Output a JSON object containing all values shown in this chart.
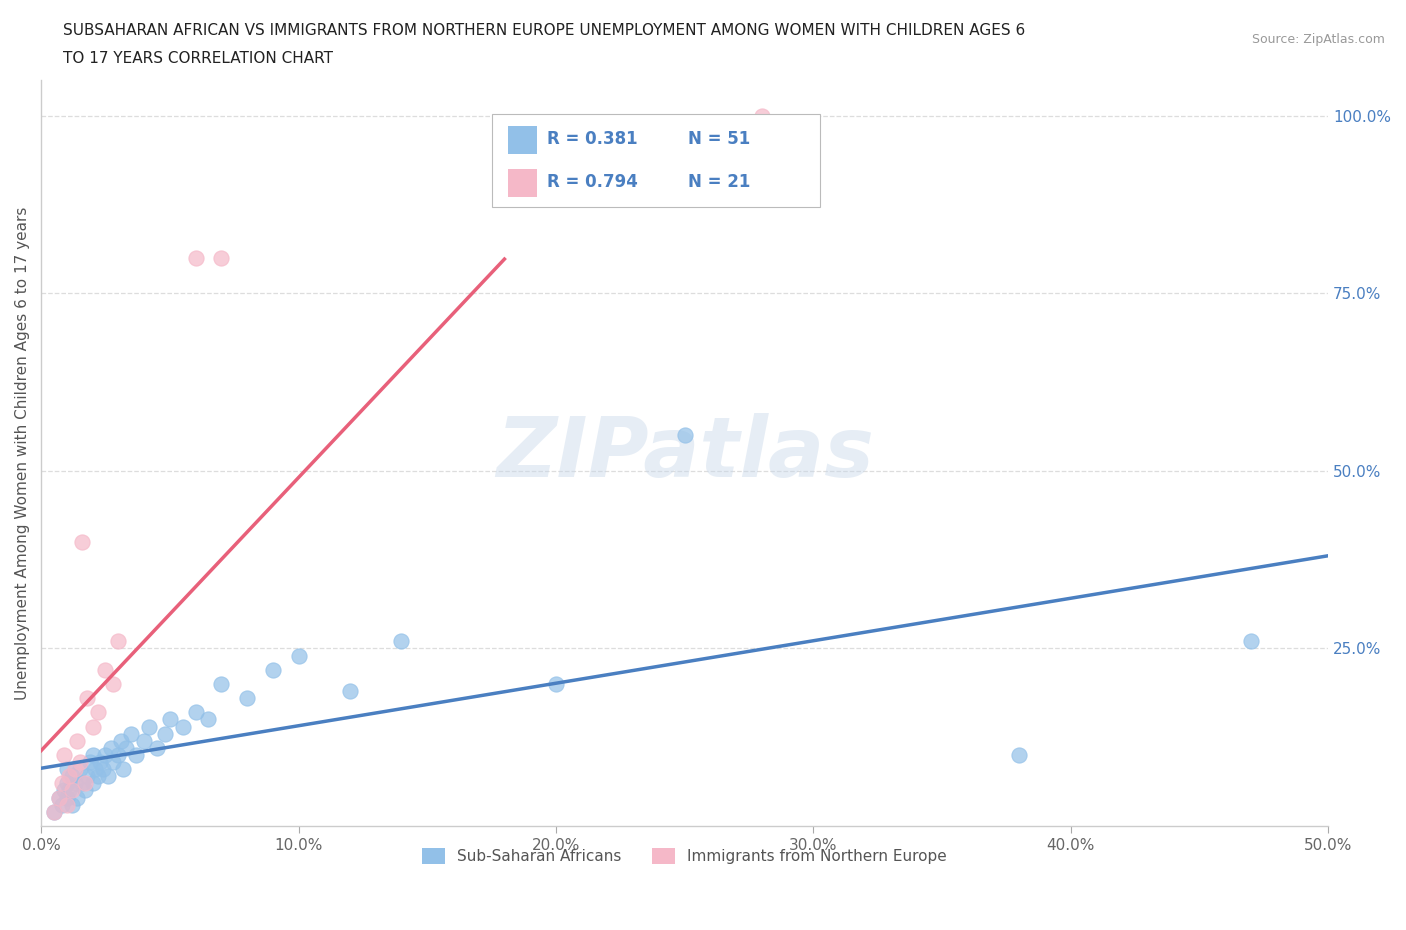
{
  "title_line1": "SUBSAHARAN AFRICAN VS IMMIGRANTS FROM NORTHERN EUROPE UNEMPLOYMENT AMONG WOMEN WITH CHILDREN AGES 6",
  "title_line2": "TO 17 YEARS CORRELATION CHART",
  "source": "Source: ZipAtlas.com",
  "ylabel_left": "Unemployment Among Women with Children Ages 6 to 17 years",
  "xlim": [
    0.0,
    0.5
  ],
  "ylim": [
    0.0,
    1.05
  ],
  "xtick_labels": [
    "0.0%",
    "10.0%",
    "20.0%",
    "30.0%",
    "40.0%",
    "50.0%"
  ],
  "xtick_vals": [
    0.0,
    0.1,
    0.2,
    0.3,
    0.4,
    0.5
  ],
  "ytick_right_labels": [
    "100.0%",
    "75.0%",
    "50.0%",
    "25.0%"
  ],
  "ytick_right_vals": [
    1.0,
    0.75,
    0.5,
    0.25
  ],
  "watermark": "ZIPatlas",
  "blue_color": "#92c0e8",
  "pink_color": "#f5b8c8",
  "blue_line_color": "#4a7fc1",
  "pink_line_color": "#e8607a",
  "R_blue": 0.381,
  "N_blue": 51,
  "R_pink": 0.794,
  "N_pink": 21,
  "blue_scatter_x": [
    0.005,
    0.007,
    0.008,
    0.009,
    0.01,
    0.01,
    0.01,
    0.011,
    0.012,
    0.012,
    0.013,
    0.014,
    0.015,
    0.016,
    0.017,
    0.018,
    0.019,
    0.02,
    0.02,
    0.021,
    0.022,
    0.023,
    0.024,
    0.025,
    0.026,
    0.027,
    0.028,
    0.03,
    0.031,
    0.032,
    0.033,
    0.035,
    0.037,
    0.04,
    0.042,
    0.045,
    0.048,
    0.05,
    0.055,
    0.06,
    0.065,
    0.07,
    0.08,
    0.09,
    0.1,
    0.12,
    0.14,
    0.2,
    0.25,
    0.38,
    0.47
  ],
  "blue_scatter_y": [
    0.02,
    0.04,
    0.03,
    0.05,
    0.04,
    0.06,
    0.08,
    0.05,
    0.07,
    0.03,
    0.06,
    0.04,
    0.08,
    0.06,
    0.05,
    0.07,
    0.09,
    0.06,
    0.1,
    0.08,
    0.07,
    0.09,
    0.08,
    0.1,
    0.07,
    0.11,
    0.09,
    0.1,
    0.12,
    0.08,
    0.11,
    0.13,
    0.1,
    0.12,
    0.14,
    0.11,
    0.13,
    0.15,
    0.14,
    0.16,
    0.15,
    0.2,
    0.18,
    0.22,
    0.24,
    0.19,
    0.26,
    0.2,
    0.55,
    0.1,
    0.26
  ],
  "pink_scatter_x": [
    0.005,
    0.007,
    0.008,
    0.009,
    0.01,
    0.011,
    0.012,
    0.013,
    0.014,
    0.015,
    0.016,
    0.017,
    0.018,
    0.02,
    0.022,
    0.025,
    0.028,
    0.03,
    0.06,
    0.07,
    0.28
  ],
  "pink_scatter_y": [
    0.02,
    0.04,
    0.06,
    0.1,
    0.03,
    0.07,
    0.05,
    0.08,
    0.12,
    0.09,
    0.4,
    0.06,
    0.18,
    0.14,
    0.16,
    0.22,
    0.2,
    0.26,
    0.8,
    0.8,
    1.0
  ]
}
